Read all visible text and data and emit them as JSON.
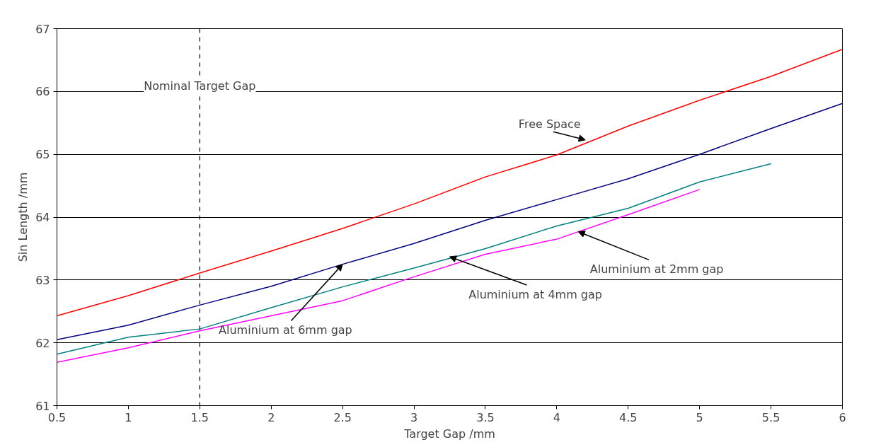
{
  "chart_data": {
    "type": "line",
    "xlabel": "Target Gap /mm",
    "ylabel": "Sin Length /mm",
    "x": [
      0.5,
      1,
      1.5,
      2,
      2.5,
      3,
      3.5,
      4,
      4.5,
      5,
      5.5,
      6
    ],
    "series": [
      {
        "color": "#ff0000",
        "values": [
          62.43,
          62.75,
          63.11,
          63.46,
          63.82,
          64.21,
          64.64,
          64.99,
          65.45,
          65.86,
          66.24,
          66.67
        ]
      },
      {
        "color": "#000080",
        "values": [
          62.05,
          62.28,
          62.6,
          62.9,
          63.25,
          63.58,
          63.95,
          64.28,
          64.61,
          65.0,
          65.41,
          65.81
        ]
      },
      {
        "color": "#008080",
        "values": [
          61.82,
          62.09,
          62.22,
          62.56,
          62.89,
          63.19,
          63.5,
          63.86,
          64.14,
          64.56,
          64.85,
          null
        ]
      },
      {
        "color": "#ff00ff",
        "values": [
          61.69,
          61.92,
          62.19,
          62.43,
          62.67,
          63.05,
          63.41,
          63.65,
          64.04,
          64.44,
          null,
          null
        ]
      }
    ],
    "xlim": [
      0.5,
      6
    ],
    "ylim": [
      61,
      67
    ],
    "xticks": [
      0.5,
      1,
      1.5,
      2,
      2.5,
      3,
      3.5,
      4,
      4.5,
      5,
      5.5,
      6
    ],
    "yticks": [
      61,
      62,
      63,
      64,
      65,
      66,
      67
    ],
    "grid": "y",
    "marker": "none",
    "line_style": "solid",
    "ref_lines": [
      {
        "axis": "x",
        "value": 1.5,
        "label": "Nominal Target Gap",
        "color": "#000000",
        "line_style": "dashed"
      }
    ],
    "annotations": [
      {
        "text": "Free Space",
        "x": 4.2,
        "y": 65.23
      },
      {
        "text": "Aluminium at 2mm gap",
        "x": 4.15,
        "y": 63.77
      },
      {
        "text": "Aluminium at 4mm gap",
        "x": 3.25,
        "y": 63.37
      },
      {
        "text": "Aluminium at 6mm gap",
        "x": 2.5,
        "y": 63.25
      }
    ]
  }
}
